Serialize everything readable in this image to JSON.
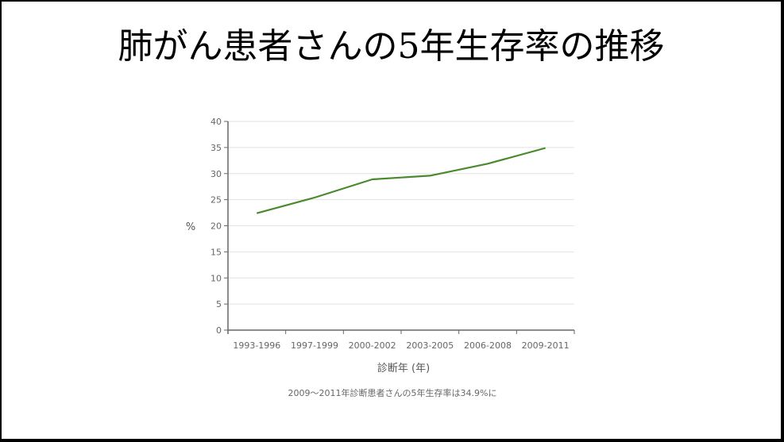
{
  "slide": {
    "title": "肺がん患者さんの5年生存率の推移",
    "caption": "2009〜2011年診断患者さんの5年生存率は34.9%に"
  },
  "chart_data": {
    "type": "line",
    "title": "肺がん患者さんの5年生存率の推移",
    "categories": [
      "1993-1996",
      "1997-1999",
      "2000-2002",
      "2003-2005",
      "2006-2008",
      "2009-2011"
    ],
    "series": [
      {
        "name": "5年生存率",
        "values": [
          22.4,
          25.4,
          28.9,
          29.6,
          31.9,
          34.9
        ],
        "color": "#4a8a2f"
      }
    ],
    "xlabel": "診断年 (年)",
    "ylabel": "%",
    "ylim": [
      0,
      40
    ],
    "yticks": [
      0,
      5,
      10,
      15,
      20,
      25,
      30,
      35,
      40
    ],
    "grid": true,
    "legend": "none",
    "annotation": "2009〜2011年診断患者さんの5年生存率は34.9%に"
  }
}
